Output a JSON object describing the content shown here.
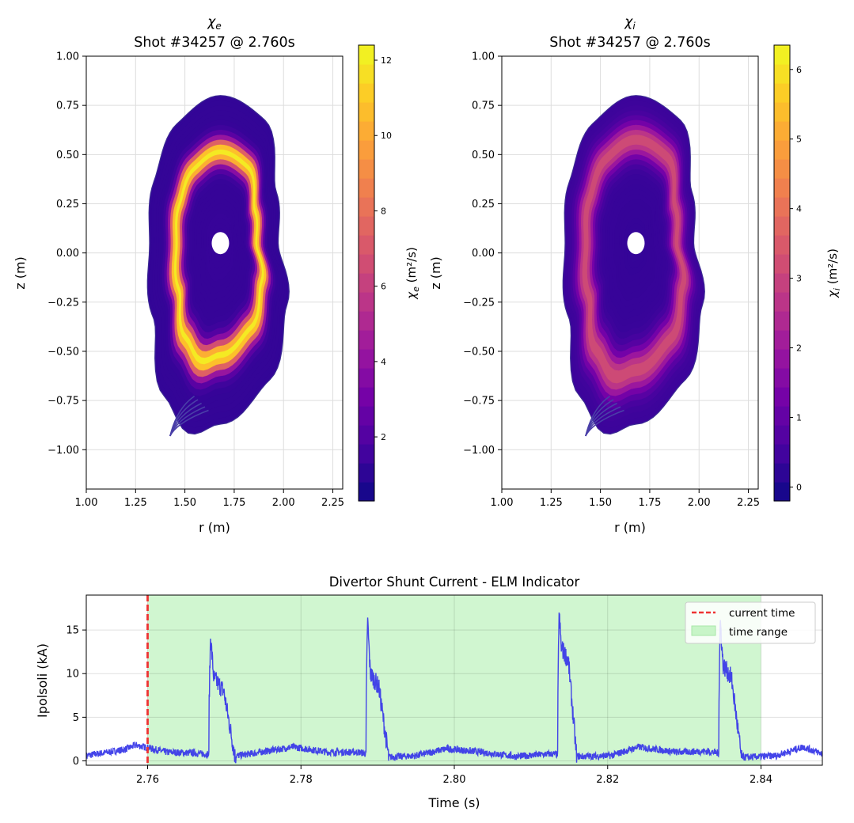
{
  "chart_data": [
    {
      "type": "heatmap",
      "symbol": "χ",
      "subscript": "e",
      "title_line2": "Shot #34257 @ 2.760s",
      "xlabel": "r (m)",
      "ylabel": "z (m)",
      "xlim": [
        1.0,
        2.3
      ],
      "ylim": [
        -1.2,
        1.0
      ],
      "xticks": [
        1.0,
        1.25,
        1.5,
        1.75,
        2.0,
        2.25
      ],
      "yticks": [
        1.0,
        0.75,
        0.5,
        0.25,
        0.0,
        -0.25,
        -0.5,
        -0.75,
        -1.0
      ],
      "colorbar": {
        "label_symbol": "χ",
        "label_sub": "e",
        "label_unit": " (m²/s)",
        "range": [
          0.3,
          12.4
        ],
        "ticks": [
          2,
          4,
          6,
          8,
          10,
          12
        ]
      },
      "magnetic_axis": [
        1.68,
        0.05
      ],
      "peak_value": 12.0,
      "peak_radius_fraction": 0.62,
      "core_value": 1.3,
      "edge_value": 1.2
    },
    {
      "type": "heatmap",
      "symbol": "χ",
      "subscript": "i",
      "title_line2": "Shot #34257 @ 2.760s",
      "xlabel": "r (m)",
      "ylabel": "z (m)",
      "xlim": [
        1.0,
        2.3
      ],
      "ylim": [
        -1.2,
        1.0
      ],
      "xticks": [
        1.0,
        1.25,
        1.5,
        1.75,
        2.0,
        2.25
      ],
      "yticks": [
        1.0,
        0.75,
        0.5,
        0.25,
        0.0,
        -0.25,
        -0.5,
        -0.75,
        -1.0
      ],
      "colorbar": {
        "label_symbol": "χ",
        "label_sub": "i",
        "label_unit": " (m²/s)",
        "range": [
          -0.2,
          6.35
        ],
        "ticks": [
          0,
          1,
          2,
          3,
          4,
          5,
          6
        ]
      },
      "magnetic_axis": [
        1.68,
        0.05
      ],
      "peak_value": 3.2,
      "peak_radius_fraction": 0.7,
      "core_value": 0.3,
      "edge_value": 0.4
    },
    {
      "type": "line",
      "title": "Divertor Shunt Current - ELM Indicator",
      "xlabel": "Time (s)",
      "ylabel": "Ipolsoli (kA)",
      "xlim": [
        2.752,
        2.848
      ],
      "ylim": [
        -0.5,
        19.0
      ],
      "xticks": [
        2.76,
        2.78,
        2.8,
        2.82,
        2.84
      ],
      "yticks": [
        0,
        5,
        10,
        15
      ],
      "current_time": 2.76,
      "time_range": [
        2.76,
        2.84
      ],
      "legend": [
        {
          "label": "current time",
          "style": "dashed",
          "color": "#ee3333"
        },
        {
          "label": "time range",
          "style": "patch",
          "color": "#c8f5c8"
        }
      ],
      "series": {
        "name": "Ipolsoli",
        "color": "#3a3ae8",
        "baseline": [
          [
            2.752,
            0.6
          ],
          [
            2.757,
            1.3
          ],
          [
            2.7585,
            1.8
          ],
          [
            2.76,
            1.5
          ],
          [
            2.7625,
            1.0
          ],
          [
            2.766,
            0.9
          ],
          [
            2.771,
            0.5
          ],
          [
            2.774,
            0.9
          ],
          [
            2.779,
            1.6
          ],
          [
            2.7835,
            1.0
          ],
          [
            2.7875,
            1.0
          ],
          [
            2.791,
            0.4
          ],
          [
            2.795,
            0.6
          ],
          [
            2.799,
            1.4
          ],
          [
            2.8035,
            1.0
          ],
          [
            2.808,
            0.5
          ],
          [
            2.8125,
            0.8
          ],
          [
            2.8165,
            0.5
          ],
          [
            2.8205,
            0.6
          ],
          [
            2.824,
            1.6
          ],
          [
            2.829,
            1.0
          ],
          [
            2.833,
            1.1
          ],
          [
            2.838,
            0.4
          ],
          [
            2.842,
            0.6
          ],
          [
            2.8455,
            1.6
          ],
          [
            2.848,
            0.8
          ]
        ],
        "elms": [
          {
            "t": 2.768,
            "peak": 14.2,
            "shoulder": 9.5,
            "end": 2.7715
          },
          {
            "t": 2.7885,
            "peak": 16.4,
            "shoulder": 10.0,
            "end": 2.7915
          },
          {
            "t": 2.8135,
            "peak": 17.2,
            "shoulder": 13.0,
            "end": 2.816
          },
          {
            "t": 2.8345,
            "peak": 16.3,
            "shoulder": 11.0,
            "end": 2.8375
          }
        ]
      }
    }
  ],
  "colors": {
    "plasma_stops": [
      "#0d0887",
      "#46039f",
      "#7201a8",
      "#9c179e",
      "#bd3786",
      "#d8576b",
      "#ed7953",
      "#fb9f3a",
      "#fdca26",
      "#f0f921"
    ],
    "grid": "#dddddd",
    "boundary": "#3b2a93"
  }
}
